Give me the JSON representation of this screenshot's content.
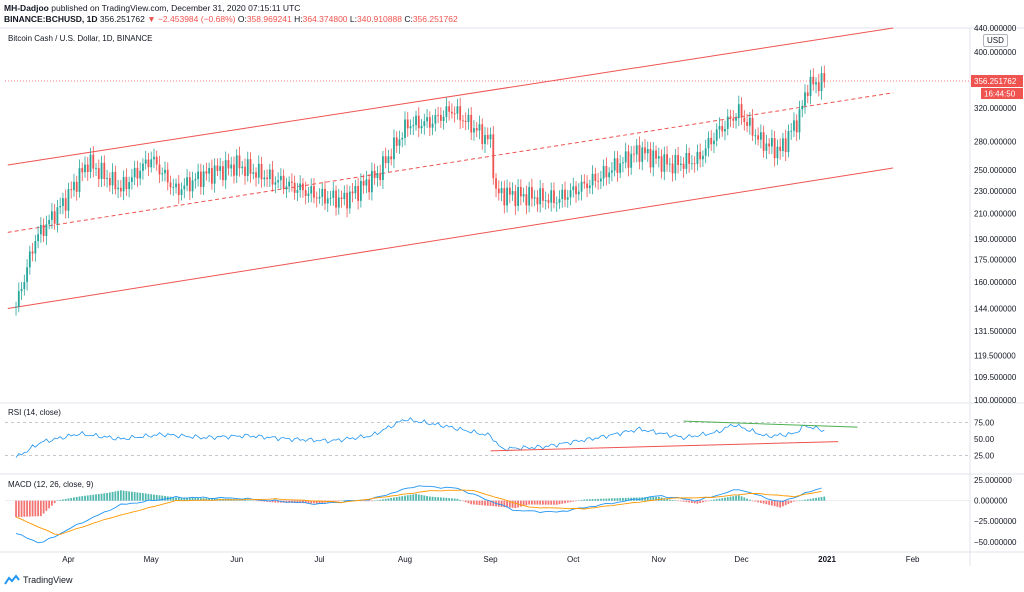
{
  "header": {
    "author": "MH-Dadjoo",
    "published": "published on TradingView.com, December 31, 2020 07:15:11 UTC",
    "symbol": "BINANCE:BCHUSD, 1D",
    "last": "356.251762",
    "change": "▼ −2.453984 (−0.68%)",
    "open_label": "O:",
    "open": "358.969241",
    "high_label": "H:",
    "high": "364.374800",
    "low_label": "L:",
    "low": "340.910888",
    "close_label": "C:",
    "close": "356.251762"
  },
  "brand": {
    "name": "TradingView"
  },
  "colors": {
    "up": "#26a69a",
    "down": "#ef5350",
    "channel": "#ef5350",
    "rsi": "#2196f3",
    "signal": "#ff9800",
    "macd": "#2196f3"
  },
  "chart_data": [
    {
      "type": "candlestick",
      "title": "Bitcoin Cash / U.S. Dollar, 1D, BINANCE",
      "y_scale": "log",
      "ylim": [
        100,
        440
      ],
      "y_ticks": [
        440,
        400,
        360,
        320,
        280,
        250,
        230,
        210,
        190,
        175,
        160,
        144,
        131.5,
        119.5,
        109.5,
        100
      ],
      "y_tick_labels": [
        "440.000000",
        "400.000000",
        "360.000000",
        "320.000000",
        "280.000000",
        "250.000000",
        "230.000000",
        "210.000000",
        "190.000000",
        "175.000000",
        "160.000000",
        "144.000000",
        "131.500000",
        "119.500000",
        "109.500000",
        "100.000000"
      ],
      "currency_label": "USD",
      "last_price_label": "356.251762",
      "countdown_label": "16:44:50",
      "x_ticks": [
        "Apr",
        "May",
        "Jun",
        "Jul",
        "Aug",
        "Sep",
        "Oct",
        "Nov",
        "Dec",
        "2021",
        "Feb"
      ],
      "close_path": [
        {
          "date": "2020-03-13",
          "close": 145
        },
        {
          "date": "2020-03-20",
          "close": 190
        },
        {
          "date": "2020-03-31",
          "close": 222
        },
        {
          "date": "2020-04-08",
          "close": 258
        },
        {
          "date": "2020-04-20",
          "close": 232
        },
        {
          "date": "2020-05-01",
          "close": 262
        },
        {
          "date": "2020-05-10",
          "close": 230
        },
        {
          "date": "2020-05-20",
          "close": 245
        },
        {
          "date": "2020-06-01",
          "close": 255
        },
        {
          "date": "2020-06-15",
          "close": 240
        },
        {
          "date": "2020-07-01",
          "close": 225
        },
        {
          "date": "2020-07-10",
          "close": 222
        },
        {
          "date": "2020-07-22",
          "close": 245
        },
        {
          "date": "2020-08-02",
          "close": 300
        },
        {
          "date": "2020-08-10",
          "close": 302
        },
        {
          "date": "2020-08-18",
          "close": 318
        },
        {
          "date": "2020-09-01",
          "close": 280
        },
        {
          "date": "2020-09-03",
          "close": 228
        },
        {
          "date": "2020-09-15",
          "close": 225
        },
        {
          "date": "2020-09-25",
          "close": 222
        },
        {
          "date": "2020-10-10",
          "close": 242
        },
        {
          "date": "2020-10-25",
          "close": 270
        },
        {
          "date": "2020-11-05",
          "close": 255
        },
        {
          "date": "2020-11-15",
          "close": 260
        },
        {
          "date": "2020-11-22",
          "close": 290
        },
        {
          "date": "2020-11-30",
          "close": 315
        },
        {
          "date": "2020-12-08",
          "close": 280
        },
        {
          "date": "2020-12-15",
          "close": 270
        },
        {
          "date": "2020-12-22",
          "close": 310
        },
        {
          "date": "2020-12-25",
          "close": 350
        },
        {
          "date": "2020-12-31",
          "close": 356.25
        }
      ],
      "channel": {
        "upper": [
          {
            "date": "2020-03-10",
            "value": 255
          },
          {
            "date": "2021-01-25",
            "value": 440
          }
        ],
        "middle": [
          {
            "date": "2020-03-10",
            "value": 195
          },
          {
            "date": "2021-01-25",
            "value": 340
          }
        ],
        "lower": [
          {
            "date": "2020-03-10",
            "value": 144
          },
          {
            "date": "2021-01-25",
            "value": 252
          }
        ]
      }
    },
    {
      "type": "line",
      "title": "RSI (14, close)",
      "ylim": [
        0,
        100
      ],
      "y_ticks": [
        75,
        50,
        25
      ],
      "y_tick_labels": [
        "75.00",
        "50.00",
        "25.00"
      ],
      "series": [
        {
          "values": [
            {
              "date": "2020-03-13",
              "value": 22
            },
            {
              "date": "2020-03-22",
              "value": 45
            },
            {
              "date": "2020-04-05",
              "value": 58
            },
            {
              "date": "2020-04-20",
              "value": 50
            },
            {
              "date": "2020-05-05",
              "value": 57
            },
            {
              "date": "2020-05-20",
              "value": 52
            },
            {
              "date": "2020-06-05",
              "value": 55
            },
            {
              "date": "2020-06-20",
              "value": 50
            },
            {
              "date": "2020-07-05",
              "value": 47
            },
            {
              "date": "2020-07-20",
              "value": 55
            },
            {
              "date": "2020-08-01",
              "value": 80
            },
            {
              "date": "2020-08-15",
              "value": 70
            },
            {
              "date": "2020-09-01",
              "value": 55
            },
            {
              "date": "2020-09-05",
              "value": 35
            },
            {
              "date": "2020-09-20",
              "value": 38
            },
            {
              "date": "2020-10-10",
              "value": 52
            },
            {
              "date": "2020-10-25",
              "value": 65
            },
            {
              "date": "2020-11-10",
              "value": 52
            },
            {
              "date": "2020-11-22",
              "value": 60
            },
            {
              "date": "2020-11-28",
              "value": 72
            },
            {
              "date": "2020-12-10",
              "value": 54
            },
            {
              "date": "2020-12-20",
              "value": 58
            },
            {
              "date": "2020-12-24",
              "value": 70
            },
            {
              "date": "2020-12-31",
              "value": 63
            }
          ]
        }
      ],
      "trendlines": {
        "resistance": [
          {
            "date": "2020-11-10",
            "value": 77
          },
          {
            "date": "2021-01-12",
            "value": 68
          }
        ],
        "support": [
          {
            "date": "2020-09-01",
            "value": 32
          },
          {
            "date": "2021-01-05",
            "value": 46
          }
        ]
      }
    },
    {
      "type": "histogram_line",
      "title": "MACD (12, 26, close, 9)",
      "y_ticks": [
        25,
        0,
        -25,
        -50
      ],
      "y_tick_labels": [
        "25.000000",
        "0.000000",
        "−25.000000",
        "−50.000000"
      ],
      "series": [
        {
          "values": [
            {
              "date": "2020-03-13",
              "value": -40
            },
            {
              "date": "2020-03-22",
              "value": -52
            },
            {
              "date": "2020-04-05",
              "value": -28
            },
            {
              "date": "2020-04-20",
              "value": -5
            },
            {
              "date": "2020-05-10",
              "value": 4
            },
            {
              "date": "2020-06-01",
              "value": 3
            },
            {
              "date": "2020-07-01",
              "value": -4
            },
            {
              "date": "2020-07-20",
              "value": 2
            },
            {
              "date": "2020-08-05",
              "value": 18
            },
            {
              "date": "2020-08-20",
              "value": 15
            },
            {
              "date": "2020-09-10",
              "value": -12
            },
            {
              "date": "2020-09-25",
              "value": -14
            },
            {
              "date": "2020-10-15",
              "value": -3
            },
            {
              "date": "2020-11-01",
              "value": 6
            },
            {
              "date": "2020-11-15",
              "value": 0
            },
            {
              "date": "2020-11-30",
              "value": 14
            },
            {
              "date": "2020-12-15",
              "value": -2
            },
            {
              "date": "2020-12-31",
              "value": 17
            }
          ]
        },
        {
          "values": [
            {
              "date": "2020-03-13",
              "value": -20
            },
            {
              "date": "2020-03-28",
              "value": -42
            },
            {
              "date": "2020-04-15",
              "value": -22
            },
            {
              "date": "2020-05-10",
              "value": 0
            },
            {
              "date": "2020-06-15",
              "value": 2
            },
            {
              "date": "2020-07-10",
              "value": -2
            },
            {
              "date": "2020-08-10",
              "value": 12
            },
            {
              "date": "2020-08-25",
              "value": 13
            },
            {
              "date": "2020-09-15",
              "value": -8
            },
            {
              "date": "2020-10-05",
              "value": -10
            },
            {
              "date": "2020-11-05",
              "value": 3
            },
            {
              "date": "2020-11-20",
              "value": 4
            },
            {
              "date": "2020-12-05",
              "value": 9
            },
            {
              "date": "2020-12-20",
              "value": 5
            },
            {
              "date": "2020-12-31",
              "value": 12
            }
          ]
        }
      ]
    }
  ]
}
